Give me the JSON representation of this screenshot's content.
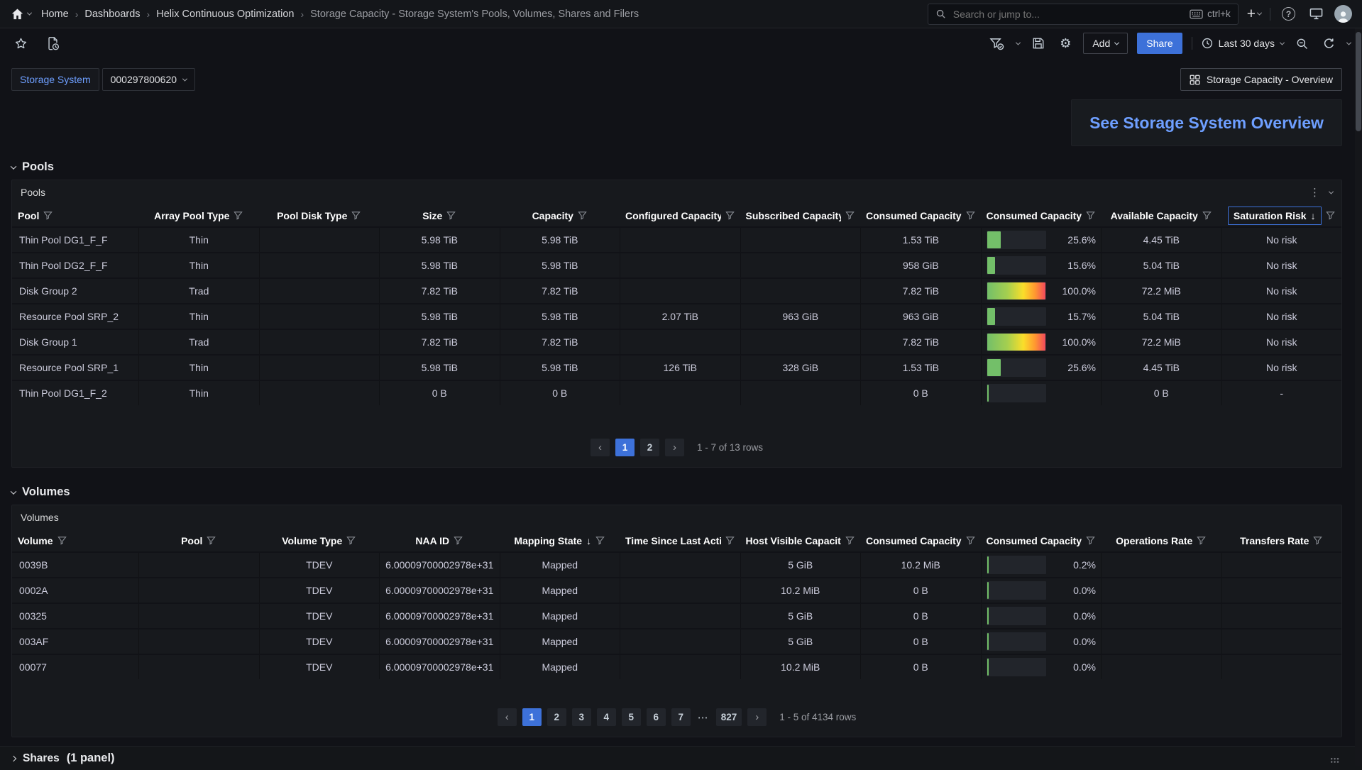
{
  "nav": {
    "breadcrumbs": [
      "Home",
      "Dashboards",
      "Helix Continuous Optimization",
      "Storage Capacity - Storage System's Pools, Volumes, Shares and Filers"
    ],
    "search_placeholder": "Search or jump to...",
    "search_shortcut": "ctrl+k",
    "icons": [
      "home-icon",
      "chevron-down-icon",
      "search-icon",
      "keyboard-icon",
      "plus-icon",
      "help-icon",
      "monitor-icon",
      "avatar"
    ]
  },
  "toolbar": {
    "add_label": "Add",
    "share_label": "Share",
    "time_range": "Last 30 days",
    "icons": [
      "star-icon",
      "snapshot-icon",
      "filter-check-icon",
      "save-icon",
      "gear-icon",
      "clock-icon",
      "zoom-out-icon",
      "refresh-icon"
    ]
  },
  "variables": {
    "label": "Storage System",
    "value": "000297800620"
  },
  "overview": {
    "button_label": "Storage Capacity - Overview",
    "link_label": "See Storage System Overview"
  },
  "sections": {
    "pools": "Pools",
    "volumes": "Volumes",
    "shares": "Shares",
    "shares_note": "(1 panel)"
  },
  "pools_table": {
    "title": "Pools",
    "columns": [
      {
        "label": "Pool",
        "align": "left"
      },
      {
        "label": "Array Pool Type"
      },
      {
        "label": "Pool Disk Type"
      },
      {
        "label": "Size"
      },
      {
        "label": "Capacity"
      },
      {
        "label": "Configured Capacity"
      },
      {
        "label": "Subscribed Capacity"
      },
      {
        "label": "Consumed Capacity"
      },
      {
        "label": "Consumed Capacity"
      },
      {
        "label": "Available Capacity"
      },
      {
        "label": "Saturation Risk",
        "sorted": "desc",
        "selected": true
      }
    ],
    "rows": [
      [
        "Thin Pool DG1_F_F",
        "Thin",
        "",
        "5.98 TiB",
        "5.98 TiB",
        "",
        "",
        "1.53 TiB",
        {
          "pct": 25.6,
          "label": "25.6%"
        },
        "4.45 TiB",
        "No risk"
      ],
      [
        "Thin Pool DG2_F_F",
        "Thin",
        "",
        "5.98 TiB",
        "5.98 TiB",
        "",
        "",
        "958 GiB",
        {
          "pct": 15.6,
          "label": "15.6%"
        },
        "5.04 TiB",
        "No risk"
      ],
      [
        "Disk Group 2",
        "Trad",
        "",
        "7.82 TiB",
        "7.82 TiB",
        "",
        "",
        "7.82 TiB",
        {
          "pct": 100,
          "label": "100.0%",
          "gradient": true
        },
        "72.2 MiB",
        "No risk"
      ],
      [
        "Resource Pool SRP_2",
        "Thin",
        "",
        "5.98 TiB",
        "5.98 TiB",
        "2.07 TiB",
        "963 GiB",
        "963 GiB",
        {
          "pct": 15.7,
          "label": "15.7%"
        },
        "5.04 TiB",
        "No risk"
      ],
      [
        "Disk Group 1",
        "Trad",
        "",
        "7.82 TiB",
        "7.82 TiB",
        "",
        "",
        "7.82 TiB",
        {
          "pct": 100,
          "label": "100.0%",
          "gradient": true
        },
        "72.2 MiB",
        "No risk"
      ],
      [
        "Resource Pool SRP_1",
        "Thin",
        "",
        "5.98 TiB",
        "5.98 TiB",
        "126 TiB",
        "328 GiB",
        "1.53 TiB",
        {
          "pct": 25.6,
          "label": "25.6%"
        },
        "4.45 TiB",
        "No risk"
      ],
      [
        "Thin Pool DG1_F_2",
        "Thin",
        "",
        "0 B",
        "0 B",
        "",
        "",
        "0 B",
        {
          "pct": 0,
          "label": ""
        },
        "0 B",
        "-"
      ]
    ],
    "pagination": {
      "prev": "‹",
      "next": "›",
      "pages": [
        "1",
        "2"
      ],
      "active": "1",
      "info": "1 - 7 of 13 rows"
    }
  },
  "volumes_table": {
    "title": "Volumes",
    "columns": [
      {
        "label": "Volume",
        "align": "left"
      },
      {
        "label": "Pool"
      },
      {
        "label": "Volume Type"
      },
      {
        "label": "NAA ID"
      },
      {
        "label": "Mapping State",
        "sorted": "desc"
      },
      {
        "label": "Time Since Last Activity"
      },
      {
        "label": "Host Visible Capacity"
      },
      {
        "label": "Consumed Capacity"
      },
      {
        "label": "Consumed Capacity"
      },
      {
        "label": "Operations Rate"
      },
      {
        "label": "Transfers Rate"
      }
    ],
    "rows": [
      [
        "0039B",
        "",
        "TDEV",
        "6.00009700002978e+31",
        "Mapped",
        "",
        "5 GiB",
        "10.2 MiB",
        {
          "pct": 0.2,
          "label": "0.2%"
        },
        "",
        ""
      ],
      [
        "0002A",
        "",
        "TDEV",
        "6.00009700002978e+31",
        "Mapped",
        "",
        "10.2 MiB",
        "0 B",
        {
          "pct": 0,
          "label": "0.0%"
        },
        "",
        ""
      ],
      [
        "00325",
        "",
        "TDEV",
        "6.00009700002978e+31",
        "Mapped",
        "",
        "5 GiB",
        "0 B",
        {
          "pct": 0,
          "label": "0.0%"
        },
        "",
        ""
      ],
      [
        "003AF",
        "",
        "TDEV",
        "6.00009700002978e+31",
        "Mapped",
        "",
        "5 GiB",
        "0 B",
        {
          "pct": 0,
          "label": "0.0%"
        },
        "",
        ""
      ],
      [
        "00077",
        "",
        "TDEV",
        "6.00009700002978e+31",
        "Mapped",
        "",
        "10.2 MiB",
        "0 B",
        {
          "pct": 0,
          "label": "0.0%"
        },
        "",
        ""
      ]
    ],
    "pagination": {
      "prev": "‹",
      "next": "›",
      "pages": [
        "1",
        "2",
        "3",
        "4",
        "5",
        "6",
        "7",
        "⋯",
        "827"
      ],
      "active": "1",
      "info": "1 - 5 of 4134 rows"
    }
  },
  "colors": {
    "accent": "#3d71d9",
    "link": "#6e9fff",
    "bar_green": "#73bf69",
    "bar_yellow": "#fade2a",
    "bar_red": "#f2495c",
    "panel_bg": "#17191d",
    "page_bg": "#111217"
  }
}
